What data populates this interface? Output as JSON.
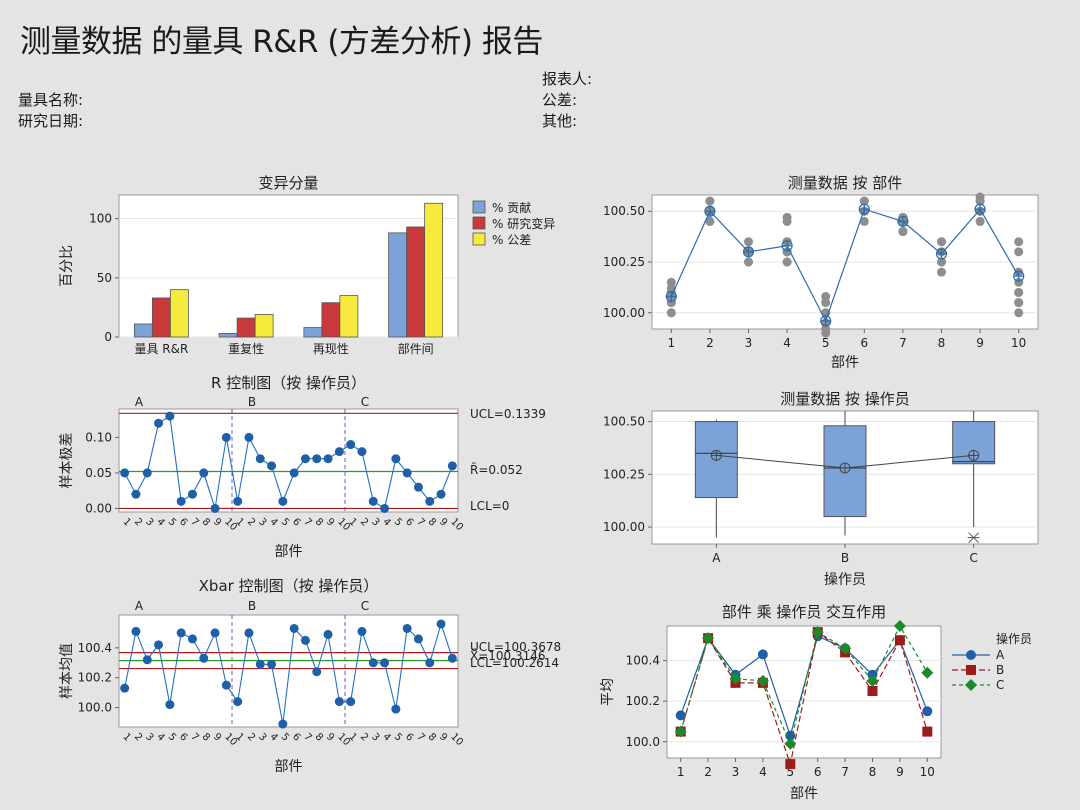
{
  "report": {
    "title": "测量数据 的量具 R&R (方差分析) 报告",
    "gauge_name_label": "量具名称:",
    "study_date_label": "研究日期:",
    "reported_by_label": "报表人:",
    "tolerance_label": "公差:",
    "misc_label": "其他:"
  },
  "chart_data": [
    {
      "id": "components",
      "type": "bar",
      "title": "变异分量",
      "ylabel": "百分比",
      "xlabel": "",
      "ylim": [
        0,
        120
      ],
      "yticks": [
        0,
        50,
        100
      ],
      "categories": [
        "量具 R&R",
        "重复性",
        "再现性",
        "部件间"
      ],
      "series": [
        {
          "name": "% 贡献",
          "color": "#7ba3d8",
          "values": [
            11,
            3,
            8,
            88
          ]
        },
        {
          "name": "% 研究变异",
          "color": "#c8393b",
          "values": [
            33,
            16,
            29,
            93
          ]
        },
        {
          "name": "% 公差",
          "color": "#f6ea3c",
          "values": [
            40,
            19,
            35,
            113
          ]
        }
      ],
      "legend": "right"
    },
    {
      "id": "by_part",
      "type": "scatter",
      "title": "测量数据 按 部件",
      "xlabel": "部件",
      "ylabel": "",
      "ylim": [
        99.92,
        100.58
      ],
      "yticks": [
        100.0,
        100.25,
        100.5
      ],
      "ytick_labels": [
        "100.00",
        "100.25",
        "100.50"
      ],
      "categories": [
        "1",
        "2",
        "3",
        "4",
        "5",
        "6",
        "7",
        "8",
        "9",
        "10"
      ],
      "points": [
        [
          100.0,
          100.05,
          100.1,
          100.15,
          100.05,
          100.1,
          100.12,
          100.08,
          100.0
        ],
        [
          100.45,
          100.5,
          100.55,
          100.5,
          100.45,
          100.5,
          100.5,
          100.55,
          100.5
        ],
        [
          100.25,
          100.3,
          100.35,
          100.3,
          100.25,
          100.3,
          100.3,
          100.3,
          100.3
        ],
        [
          100.25,
          100.3,
          100.35,
          100.45,
          100.47,
          100.3,
          100.25,
          100.35,
          100.3
        ],
        [
          99.9,
          99.95,
          100.0,
          100.05,
          100.08,
          99.92,
          99.95,
          100.0,
          99.95
        ],
        [
          100.5,
          100.55,
          100.5,
          100.45,
          100.5,
          100.55,
          100.5,
          100.5,
          100.5
        ],
        [
          100.4,
          100.45,
          100.47,
          100.45,
          100.4,
          100.45,
          100.45,
          100.47,
          100.4
        ],
        [
          100.2,
          100.25,
          100.3,
          100.35,
          100.3,
          100.25,
          100.3,
          100.35,
          100.3
        ],
        [
          100.45,
          100.5,
          100.55,
          100.57,
          100.5,
          100.45,
          100.5,
          100.55,
          100.5
        ],
        [
          100.0,
          100.05,
          100.1,
          100.15,
          100.3,
          100.35,
          100.1,
          100.2,
          100.05
        ]
      ],
      "means": [
        100.08,
        100.5,
        100.3,
        100.33,
        99.96,
        100.51,
        100.45,
        100.29,
        100.51,
        100.18
      ]
    },
    {
      "id": "r_chart",
      "type": "line",
      "title": "R 控制图（按 操作员）",
      "xlabel": "部件",
      "ylabel": "样本极差",
      "ylim": [
        -0.005,
        0.14
      ],
      "yticks": [
        0.0,
        0.05,
        0.1
      ],
      "ytick_labels": [
        "0.00",
        "0.05",
        "0.10"
      ],
      "groups": [
        "A",
        "B",
        "C"
      ],
      "x_labels": [
        "1",
        "2",
        "3",
        "4",
        "5",
        "6",
        "7",
        "8",
        "9",
        "10"
      ],
      "values": [
        0.05,
        0.02,
        0.05,
        0.12,
        0.13,
        0.01,
        0.02,
        0.05,
        0.0,
        0.1,
        0.01,
        0.1,
        0.07,
        0.06,
        0.01,
        0.05,
        0.07,
        0.07,
        0.07,
        0.08,
        0.09,
        0.08,
        0.01,
        0.0,
        0.07,
        0.05,
        0.03,
        0.01,
        0.02,
        0.06
      ],
      "ucl": 0.1339,
      "center": 0.052,
      "lcl": 0.0,
      "ucl_label": "UCL=0.1339",
      "center_label": "R̄=0.052",
      "lcl_label": "LCL=0"
    },
    {
      "id": "xbar_chart",
      "type": "line",
      "title": "Xbar 控制图（按 操作员）",
      "xlabel": "部件",
      "ylabel": "样本均值",
      "ylim": [
        99.87,
        100.62
      ],
      "yticks": [
        100.0,
        100.2,
        100.4
      ],
      "ytick_labels": [
        "100.0",
        "100.2",
        "100.4"
      ],
      "groups": [
        "A",
        "B",
        "C"
      ],
      "x_labels": [
        "1",
        "2",
        "3",
        "4",
        "5",
        "6",
        "7",
        "8",
        "9",
        "10"
      ],
      "values": [
        100.13,
        100.51,
        100.32,
        100.42,
        100.02,
        100.5,
        100.46,
        100.33,
        100.5,
        100.15,
        100.04,
        100.5,
        100.29,
        100.29,
        99.89,
        100.53,
        100.45,
        100.24,
        100.49,
        100.04,
        100.04,
        100.51,
        100.3,
        100.3,
        99.99,
        100.53,
        100.46,
        100.3,
        100.56,
        100.33
      ],
      "ucl": 100.3678,
      "center": 100.3146,
      "lcl": 100.2614,
      "ucl_label": "UCL=100.3678",
      "center_label": "X̄=100.3146",
      "lcl_label": "LCL=100.2614"
    },
    {
      "id": "by_operator",
      "type": "box",
      "title": "测量数据 按 操作员",
      "xlabel": "操作员",
      "ylabel": "",
      "ylim": [
        99.92,
        100.55
      ],
      "yticks": [
        100.0,
        100.25,
        100.5
      ],
      "ytick_labels": [
        "100.00",
        "100.25",
        "100.50"
      ],
      "categories": [
        "A",
        "B",
        "C"
      ],
      "boxes": [
        {
          "whisker_low": 99.95,
          "q1": 100.14,
          "median": 100.35,
          "q3": 100.5,
          "whisker_high": 100.51,
          "mean": 100.34
        },
        {
          "whisker_low": 99.96,
          "q1": 100.05,
          "median": 100.28,
          "q3": 100.48,
          "whisker_high": 100.55,
          "mean": 100.28
        },
        {
          "whisker_low": 100.0,
          "q1": 100.3,
          "median": 100.31,
          "q3": 100.5,
          "whisker_high": 100.55,
          "mean": 100.34,
          "outlier": 99.95
        }
      ]
    },
    {
      "id": "interaction",
      "type": "line",
      "title": "部件 乘 操作员 交互作用",
      "xlabel": "部件",
      "ylabel": "平均",
      "ylim": [
        99.92,
        100.57
      ],
      "yticks": [
        100.0,
        100.2,
        100.4
      ],
      "ytick_labels": [
        "100.0",
        "100.2",
        "100.4"
      ],
      "categories": [
        "1",
        "2",
        "3",
        "4",
        "5",
        "6",
        "7",
        "8",
        "9",
        "10"
      ],
      "legend_title": "操作员",
      "series": [
        {
          "name": "A",
          "color": "#1f5fa8",
          "marker": "circle",
          "values": [
            100.13,
            100.51,
            100.33,
            100.43,
            100.03,
            100.52,
            100.46,
            100.33,
            100.5,
            100.15
          ]
        },
        {
          "name": "B",
          "color": "#9e1b1b",
          "marker": "square",
          "values": [
            100.05,
            100.51,
            100.29,
            100.29,
            99.89,
            100.54,
            100.44,
            100.25,
            100.5,
            100.05
          ]
        },
        {
          "name": "C",
          "color": "#1a8a2a",
          "marker": "diamond",
          "values": [
            100.05,
            100.51,
            100.31,
            100.3,
            99.99,
            100.54,
            100.46,
            100.3,
            100.57,
            100.34
          ]
        }
      ]
    }
  ]
}
